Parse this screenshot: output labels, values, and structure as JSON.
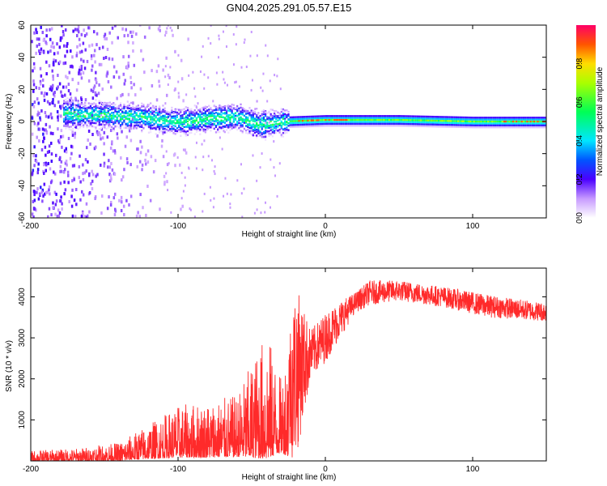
{
  "title": "GN04.2025.291.05.57.E15",
  "chart_data": [
    {
      "type": "heatmap",
      "xlabel": "Height of straight line (km)",
      "ylabel": "Frequency (Hz)",
      "xlim": [
        -200,
        150
      ],
      "ylim": [
        -60,
        60
      ],
      "xticks": [
        -200,
        -100,
        0,
        100
      ],
      "yticks": [
        60,
        40,
        20,
        0,
        -20,
        -40,
        -60
      ],
      "colorbar": {
        "label": "Normalized spectral amplitude",
        "range": [
          0.0,
          1.0
        ],
        "ticks": [
          "0.0",
          "0.2",
          "0.4",
          "0.6",
          "0.8"
        ]
      },
      "band": {
        "center_frequency_hz": [
          {
            "x": -175,
            "f": 5
          },
          {
            "x": -150,
            "f": 4
          },
          {
            "x": -125,
            "f": 3
          },
          {
            "x": -100,
            "f": 0
          },
          {
            "x": -80,
            "f": 2
          },
          {
            "x": -60,
            "f": 3
          },
          {
            "x": -45,
            "f": -2
          },
          {
            "x": -30,
            "f": 0
          },
          {
            "x": 0,
            "f": 1
          },
          {
            "x": 50,
            "f": 1
          },
          {
            "x": 100,
            "f": 0
          },
          {
            "x": 150,
            "f": 0
          }
        ],
        "peak_amplitude": 0.9
      }
    },
    {
      "type": "line",
      "xlabel": "Height of straight line (km)",
      "ylabel": "SNR (10 * v/v)",
      "xlim": [
        -200,
        150
      ],
      "ylim": [
        0,
        4700
      ],
      "xticks": [
        -200,
        -100,
        0,
        100
      ],
      "yticks": [
        1000,
        2000,
        3000,
        4000
      ],
      "series": [
        {
          "name": "SNR",
          "color": "#ff2a2a",
          "envelope": [
            {
              "x": -200,
              "low": 0,
              "high": 250
            },
            {
              "x": -170,
              "low": 0,
              "high": 300
            },
            {
              "x": -140,
              "low": 0,
              "high": 450
            },
            {
              "x": -120,
              "low": 50,
              "high": 900
            },
            {
              "x": -100,
              "low": 80,
              "high": 1350
            },
            {
              "x": -80,
              "low": 80,
              "high": 1450
            },
            {
              "x": -60,
              "low": 100,
              "high": 1600
            },
            {
              "x": -40,
              "low": 50,
              "high": 3200
            },
            {
              "x": -30,
              "low": 200,
              "high": 2000
            },
            {
              "x": -20,
              "low": 0,
              "high": 4300
            },
            {
              "x": -10,
              "low": 2000,
              "high": 3200
            },
            {
              "x": 0,
              "low": 2400,
              "high": 3600
            },
            {
              "x": 10,
              "low": 3000,
              "high": 3900
            },
            {
              "x": 20,
              "low": 3600,
              "high": 4100
            },
            {
              "x": 30,
              "low": 3800,
              "high": 4400
            },
            {
              "x": 50,
              "low": 3900,
              "high": 4400
            },
            {
              "x": 80,
              "low": 3750,
              "high": 4250
            },
            {
              "x": 110,
              "low": 3500,
              "high": 4050
            },
            {
              "x": 150,
              "low": 3400,
              "high": 3850
            }
          ]
        }
      ]
    }
  ]
}
